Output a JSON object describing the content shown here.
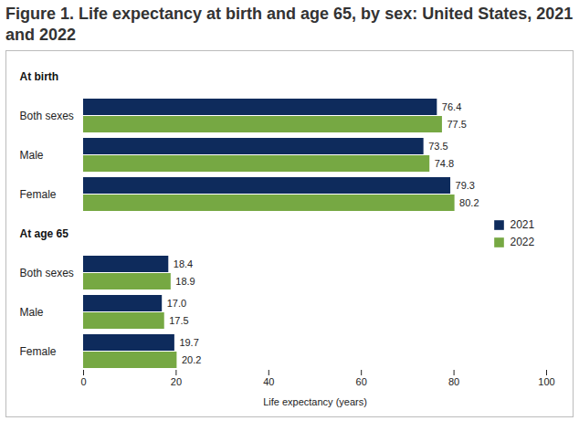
{
  "chart_data": {
    "type": "bar",
    "orientation": "horizontal",
    "title": "Figure 1. Life expectancy at birth and age 65, by sex: United States, 2021 and 2022",
    "category_groups": [
      "At birth",
      "At birth",
      "At birth",
      "At age 65",
      "At age 65",
      "At age 65"
    ],
    "categories": [
      "Both sexes",
      "Male",
      "Female",
      "Both sexes",
      "Male",
      "Female"
    ],
    "series": [
      {
        "name": "2021",
        "color": "#0e2b5c",
        "values": [
          76.4,
          73.5,
          79.3,
          18.4,
          17.0,
          19.7
        ],
        "value_labels": [
          "76.4",
          "73.5",
          "79.3",
          "18.4",
          "17.0",
          "19.7"
        ]
      },
      {
        "name": "2022",
        "color": "#76a843",
        "values": [
          77.5,
          74.8,
          80.2,
          18.9,
          17.5,
          20.2
        ],
        "value_labels": [
          "77.5",
          "74.8",
          "80.2",
          "18.9",
          "17.5",
          "20.2"
        ]
      }
    ],
    "x_label": "Life expectancy (years)",
    "xlim": [
      0,
      100
    ],
    "xticks": [
      0,
      20,
      40,
      60,
      80,
      100
    ],
    "data_labels": true,
    "legend": "right",
    "grid": false
  }
}
